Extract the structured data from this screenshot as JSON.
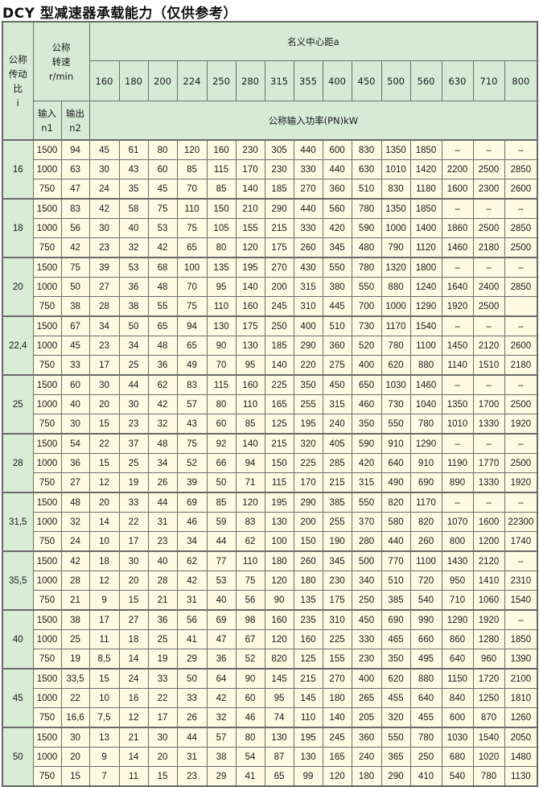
{
  "title": "DCY 型减速器承载能力（仅供参考）",
  "header": {
    "ratio_label": [
      "公称",
      "传动",
      "比",
      "i"
    ],
    "speed_label": [
      "公称",
      "转速",
      "r/min"
    ],
    "input_label": [
      "输入",
      "n1"
    ],
    "output_label": [
      "输出",
      "n2"
    ],
    "center_distance_label": "名义中心距a",
    "power_label": "公称输入功率(PN)kW",
    "center_distances": [
      "160",
      "180",
      "200",
      "224",
      "250",
      "280",
      "315",
      "355",
      "400",
      "450",
      "500",
      "560",
      "630",
      "710",
      "800"
    ]
  },
  "groups": [
    {
      "ratio": "16",
      "rows": [
        [
          "1500",
          "94",
          "45",
          "61",
          "80",
          "120",
          "160",
          "230",
          "305",
          "440",
          "600",
          "830",
          "1350",
          "1850",
          "–",
          "–",
          "–"
        ],
        [
          "1000",
          "63",
          "30",
          "43",
          "60",
          "85",
          "115",
          "170",
          "230",
          "330",
          "440",
          "630",
          "1010",
          "1420",
          "2200",
          "2500",
          "2850"
        ],
        [
          "750",
          "47",
          "24",
          "35",
          "45",
          "70",
          "85",
          "140",
          "185",
          "270",
          "360",
          "510",
          "830",
          "1180",
          "1600",
          "2300",
          "2600"
        ]
      ]
    },
    {
      "ratio": "18",
      "rows": [
        [
          "1500",
          "83",
          "42",
          "58",
          "75",
          "110",
          "150",
          "210",
          "290",
          "440",
          "560",
          "780",
          "1350",
          "1850",
          "–",
          "–",
          "–"
        ],
        [
          "1000",
          "56",
          "30",
          "40",
          "53",
          "75",
          "105",
          "155",
          "215",
          "330",
          "420",
          "590",
          "1000",
          "1400",
          "1860",
          "2500",
          "2850"
        ],
        [
          "750",
          "42",
          "23",
          "32",
          "42",
          "65",
          "80",
          "120",
          "175",
          "260",
          "345",
          "480",
          "790",
          "1120",
          "1460",
          "2180",
          "2500"
        ]
      ]
    },
    {
      "ratio": "20",
      "rows": [
        [
          "1500",
          "75",
          "39",
          "53",
          "68",
          "100",
          "135",
          "195",
          "270",
          "430",
          "550",
          "780",
          "1320",
          "1800",
          "–",
          "–",
          "–"
        ],
        [
          "1000",
          "50",
          "27",
          "36",
          "48",
          "70",
          "95",
          "140",
          "200",
          "315",
          "380",
          "550",
          "880",
          "1240",
          "1640",
          "2400",
          "2850"
        ],
        [
          "750",
          "38",
          "28",
          "38",
          "55",
          "75",
          "110",
          "160",
          "245",
          "310",
          "445",
          "700",
          "1000",
          "1290",
          "1920",
          "2500",
          ""
        ]
      ]
    },
    {
      "ratio": "22,4",
      "rows": [
        [
          "1500",
          "67",
          "34",
          "50",
          "65",
          "94",
          "130",
          "175",
          "250",
          "400",
          "510",
          "730",
          "1170",
          "1540",
          "–",
          "–",
          "–"
        ],
        [
          "1000",
          "45",
          "23",
          "34",
          "48",
          "65",
          "90",
          "130",
          "185",
          "290",
          "360",
          "520",
          "780",
          "1100",
          "1450",
          "2120",
          "2600"
        ],
        [
          "750",
          "33",
          "17",
          "25",
          "36",
          "49",
          "70",
          "95",
          "140",
          "220",
          "275",
          "400",
          "620",
          "880",
          "1140",
          "1510",
          "2180"
        ]
      ]
    },
    {
      "ratio": "25",
      "rows": [
        [
          "1500",
          "60",
          "30",
          "44",
          "62",
          "83",
          "115",
          "160",
          "225",
          "350",
          "450",
          "650",
          "1030",
          "1460",
          "–",
          "–",
          "–"
        ],
        [
          "1000",
          "40",
          "20",
          "30",
          "42",
          "57",
          "80",
          "110",
          "165",
          "255",
          "315",
          "460",
          "730",
          "1040",
          "1350",
          "1700",
          "2500"
        ],
        [
          "750",
          "30",
          "15",
          "23",
          "32",
          "43",
          "60",
          "85",
          "125",
          "195",
          "240",
          "350",
          "550",
          "780",
          "1010",
          "1330",
          "1920"
        ]
      ]
    },
    {
      "ratio": "28",
      "rows": [
        [
          "1500",
          "54",
          "22",
          "37",
          "48",
          "75",
          "92",
          "140",
          "215",
          "320",
          "405",
          "590",
          "910",
          "1290",
          "–",
          "–",
          "–"
        ],
        [
          "1000",
          "36",
          "15",
          "25",
          "34",
          "52",
          "66",
          "94",
          "150",
          "225",
          "285",
          "420",
          "640",
          "910",
          "1190",
          "1770",
          "2500"
        ],
        [
          "750",
          "27",
          "12",
          "19",
          "26",
          "39",
          "50",
          "71",
          "115",
          "170",
          "215",
          "315",
          "490",
          "690",
          "890",
          "1330",
          "1920"
        ]
      ]
    },
    {
      "ratio": "31,5",
      "rows": [
        [
          "1500",
          "48",
          "20",
          "33",
          "44",
          "69",
          "85",
          "120",
          "195",
          "290",
          "385",
          "550",
          "820",
          "1170",
          "–",
          "–",
          "–"
        ],
        [
          "1000",
          "32",
          "14",
          "22",
          "31",
          "46",
          "59",
          "83",
          "130",
          "200",
          "255",
          "370",
          "580",
          "820",
          "1070",
          "1600",
          "22300"
        ],
        [
          "750",
          "24",
          "10",
          "17",
          "23",
          "34",
          "44",
          "62",
          "100",
          "150",
          "190",
          "280",
          "440",
          "260",
          "800",
          "1200",
          "1740"
        ]
      ]
    },
    {
      "ratio": "35,5",
      "rows": [
        [
          "1500",
          "42",
          "18",
          "30",
          "40",
          "62",
          "77",
          "110",
          "180",
          "260",
          "345",
          "500",
          "770",
          "1100",
          "1430",
          "2120",
          "–"
        ],
        [
          "1000",
          "28",
          "12",
          "20",
          "28",
          "42",
          "53",
          "75",
          "120",
          "180",
          "230",
          "340",
          "510",
          "720",
          "950",
          "1410",
          "2310"
        ],
        [
          "750",
          "21",
          "9",
          "15",
          "21",
          "31",
          "40",
          "56",
          "90",
          "135",
          "175",
          "250",
          "385",
          "540",
          "710",
          "1060",
          "1540"
        ]
      ]
    },
    {
      "ratio": "40",
      "rows": [
        [
          "1500",
          "38",
          "17",
          "27",
          "36",
          "56",
          "69",
          "98",
          "160",
          "235",
          "310",
          "450",
          "690",
          "990",
          "1290",
          "1920",
          "–"
        ],
        [
          "1000",
          "25",
          "11",
          "18",
          "25",
          "41",
          "47",
          "67",
          "120",
          "160",
          "225",
          "330",
          "465",
          "660",
          "860",
          "1280",
          "1850"
        ],
        [
          "750",
          "19",
          "8,5",
          "14",
          "19",
          "29",
          "36",
          "52",
          "820",
          "125",
          "155",
          "230",
          "350",
          "495",
          "640",
          "960",
          "1390"
        ]
      ]
    },
    {
      "ratio": "45",
      "rows": [
        [
          "1500",
          "33,5",
          "15",
          "24",
          "33",
          "50",
          "64",
          "90",
          "145",
          "215",
          "270",
          "400",
          "620",
          "880",
          "1150",
          "1720",
          "2100"
        ],
        [
          "1000",
          "22",
          "10",
          "16",
          "22",
          "33",
          "42",
          "60",
          "95",
          "145",
          "180",
          "265",
          "455",
          "640",
          "840",
          "1250",
          "1810"
        ],
        [
          "750",
          "16,6",
          "7,5",
          "12",
          "17",
          "26",
          "32",
          "46",
          "74",
          "110",
          "140",
          "205",
          "320",
          "455",
          "600",
          "870",
          "1260"
        ]
      ]
    },
    {
      "ratio": "50",
      "rows": [
        [
          "1500",
          "30",
          "13",
          "21",
          "30",
          "44",
          "57",
          "80",
          "130",
          "195",
          "245",
          "360",
          "550",
          "780",
          "1030",
          "1540",
          "2050"
        ],
        [
          "1000",
          "20",
          "9",
          "14",
          "20",
          "31",
          "38",
          "54",
          "87",
          "130",
          "165",
          "240",
          "365",
          "250",
          "680",
          "1020",
          "1480"
        ],
        [
          "750",
          "15",
          "7",
          "11",
          "15",
          "23",
          "29",
          "41",
          "65",
          "99",
          "120",
          "180",
          "290",
          "410",
          "540",
          "780",
          "1130"
        ]
      ]
    }
  ]
}
